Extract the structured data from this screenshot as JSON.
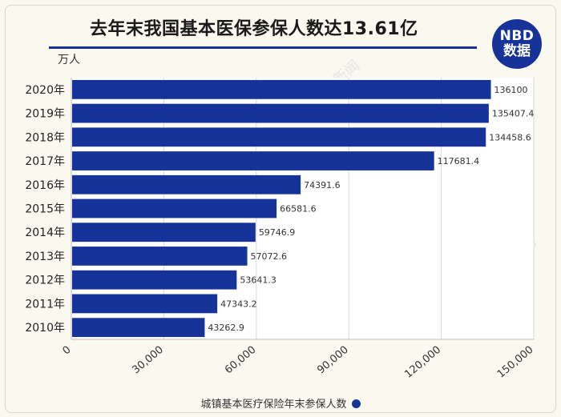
{
  "title": "去年末我国基本医保参保人数达13.61亿",
  "logo": {
    "top": "NBD",
    "bottom": "数据"
  },
  "watermark": "每日经济新闻",
  "chart_data": {
    "type": "bar",
    "orientation": "horizontal",
    "unit_label": "万人",
    "categories": [
      "2020年",
      "2019年",
      "2018年",
      "2017年",
      "2016年",
      "2015年",
      "2014年",
      "2013年",
      "2012年",
      "2011年",
      "2010年"
    ],
    "series": [
      {
        "name": "城镇基本医疗保险年末参保人数",
        "values": [
          136100,
          135407.4,
          134458.6,
          117681.4,
          74391.6,
          66581.6,
          59746.9,
          57072.6,
          53641.3,
          47343.2,
          43262.9
        ],
        "labels": [
          "136100",
          "135407.4",
          "134458.6",
          "117681.4",
          "74391.6",
          "66581.6",
          "59746.9",
          "57072.6",
          "53641.3",
          "47343.2",
          "43262.9"
        ]
      }
    ],
    "xlim": [
      0,
      150000
    ],
    "xticks": [
      0,
      30000,
      60000,
      90000,
      120000,
      150000
    ],
    "xtick_labels": [
      "0",
      "30,000",
      "60,000",
      "90,000",
      "120,000",
      "150,000"
    ],
    "grid": "vertical",
    "legend": "bottom-center",
    "bar_color": "#17339a"
  }
}
